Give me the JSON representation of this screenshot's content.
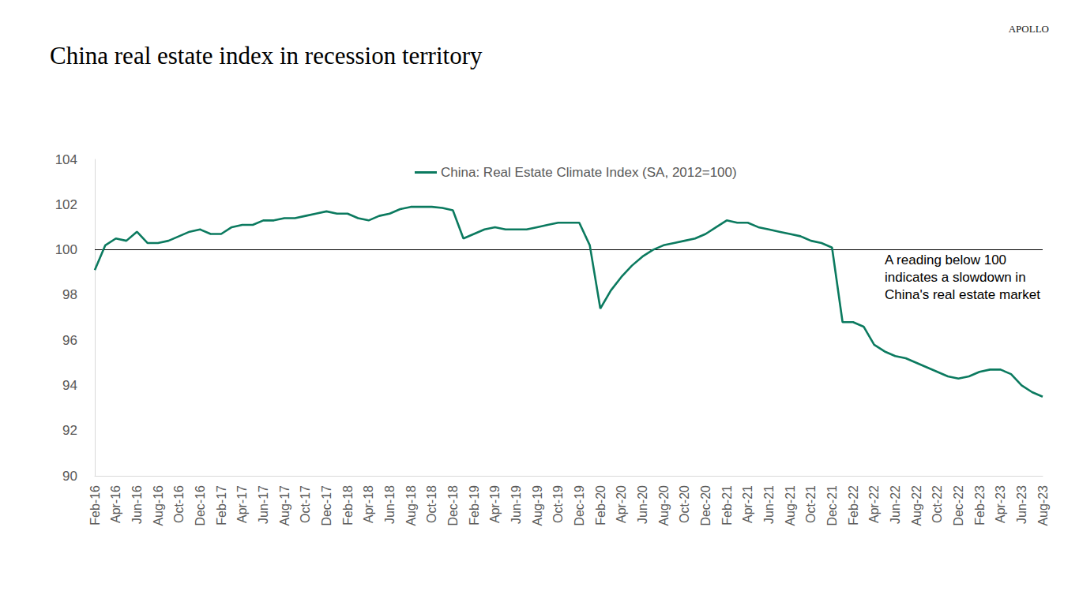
{
  "chart_data": {
    "type": "line",
    "title": "China real estate index in recession territory",
    "logo": "APOLLO",
    "annotation": [
      "A reading below 100",
      "indicates a slowdown in",
      "China's real estate market"
    ],
    "reference_line": 100,
    "legend": "top",
    "grid": false,
    "categories": [
      "Feb-16",
      null,
      "Apr-16",
      null,
      "Jun-16",
      null,
      "Aug-16",
      null,
      "Oct-16",
      null,
      "Dec-16",
      null,
      "Feb-17",
      null,
      "Apr-17",
      null,
      "Jun-17",
      null,
      "Aug-17",
      null,
      "Oct-17",
      null,
      "Dec-17",
      null,
      "Feb-18",
      null,
      "Apr-18",
      null,
      "Jun-18",
      null,
      "Aug-18",
      null,
      "Oct-18",
      null,
      "Dec-18",
      null,
      "Feb-19",
      null,
      "Apr-19",
      null,
      "Jun-19",
      null,
      "Aug-19",
      null,
      "Oct-19",
      null,
      "Dec-19",
      null,
      "Feb-20",
      null,
      "Apr-20",
      null,
      "Jun-20",
      null,
      "Aug-20",
      null,
      "Oct-20",
      null,
      "Dec-20",
      null,
      "Feb-21",
      null,
      "Apr-21",
      null,
      "Jun-21",
      null,
      "Aug-21",
      null,
      "Oct-21",
      null,
      "Dec-21",
      null,
      "Feb-22",
      null,
      "Apr-22",
      null,
      "Jun-22",
      null,
      "Aug-22",
      null,
      "Oct-22",
      null,
      "Dec-22",
      null,
      "Feb-23",
      null,
      "Apr-23",
      null,
      "Jun-23",
      null,
      "Aug-23"
    ],
    "series": [
      {
        "name": "China: Real Estate Climate Index (SA, 2012=100)",
        "color": "#0b7a5f",
        "values": [
          99.1,
          100.2,
          100.5,
          100.4,
          100.8,
          100.3,
          100.3,
          100.4,
          100.6,
          100.8,
          100.9,
          100.7,
          100.7,
          101.0,
          101.1,
          101.1,
          101.3,
          101.3,
          101.4,
          101.4,
          101.5,
          101.6,
          101.7,
          101.6,
          101.6,
          101.4,
          101.3,
          101.5,
          101.6,
          101.8,
          101.9,
          101.9,
          101.9,
          101.85,
          101.75,
          100.5,
          100.7,
          100.9,
          101.0,
          100.9,
          100.9,
          100.9,
          101.0,
          101.1,
          101.2,
          101.2,
          101.2,
          100.2,
          97.4,
          98.2,
          98.8,
          99.3,
          99.7,
          100.0,
          100.2,
          100.3,
          100.4,
          100.5,
          100.7,
          101.0,
          101.3,
          101.2,
          101.2,
          101.0,
          100.9,
          100.8,
          100.7,
          100.6,
          100.4,
          100.3,
          100.1,
          96.8,
          96.8,
          96.6,
          95.8,
          95.5,
          95.3,
          95.2,
          95.0,
          94.8,
          94.6,
          94.4,
          94.3,
          94.4,
          94.6,
          94.7,
          94.7,
          94.5,
          94.0,
          93.7,
          93.5
        ]
      }
    ],
    "ylim": [
      90,
      104
    ],
    "yticks": [
      90,
      92,
      94,
      96,
      98,
      100,
      102,
      104
    ]
  }
}
